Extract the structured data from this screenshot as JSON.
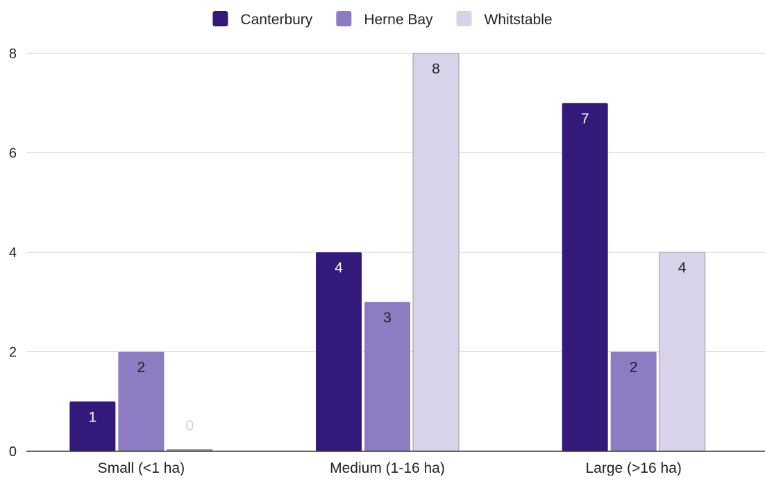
{
  "chart_data": {
    "type": "bar",
    "title": "",
    "xlabel": "",
    "ylabel": "",
    "categories": [
      "Small (<1 ha)",
      "Medium (1-16 ha)",
      "Large (>16 ha)"
    ],
    "series": [
      {
        "name": "Canterbury",
        "values": [
          1,
          4,
          7
        ],
        "color": "#33197a",
        "label_color": "#ffffff"
      },
      {
        "name": "Herne Bay",
        "values": [
          2,
          3,
          2
        ],
        "color": "#8e7cc3",
        "label_color": "#1f1f1f"
      },
      {
        "name": "Whitstable",
        "values": [
          0,
          8,
          4
        ],
        "color": "#d8d3e8",
        "label_color": "#1f1f1f"
      }
    ],
    "ylim": [
      0,
      8
    ],
    "yticks": [
      "0",
      "2",
      "4",
      "6",
      "8"
    ],
    "ytick_values": [
      0,
      2,
      4,
      6,
      8
    ],
    "grid": true,
    "legend": "top-center",
    "data_labels": true,
    "zero_label_color": "#d0d0da",
    "colors": {
      "grid": "#cccccc",
      "axis": "#333333",
      "tick_text": "#222222",
      "bar_outline": "#9a9a9a",
      "zero_bar": "#9e9e9e"
    }
  }
}
